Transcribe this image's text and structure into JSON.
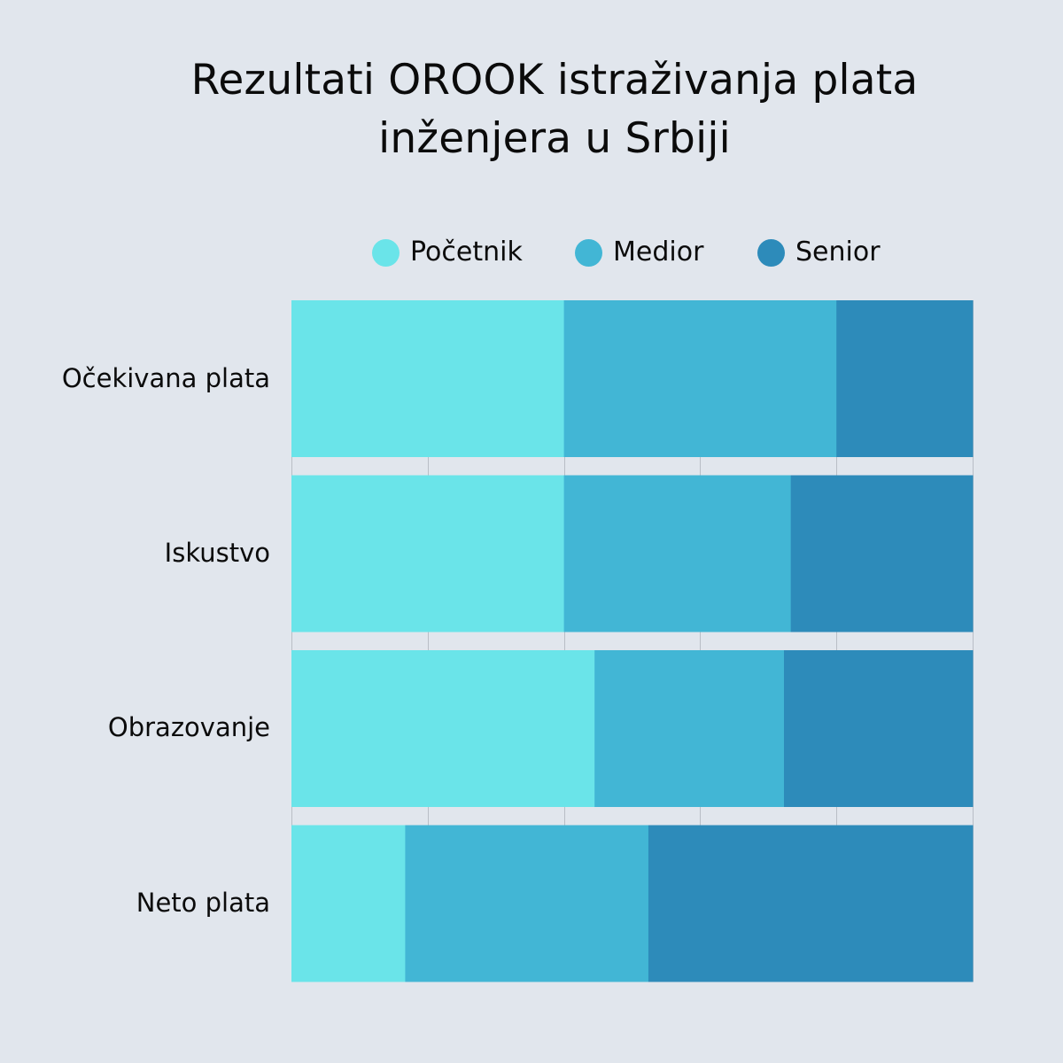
{
  "chart_data": {
    "type": "bar",
    "orientation": "horizontal",
    "stacked": true,
    "normalized": true,
    "title_lines": [
      "Rezultati OROOK istraživanja plata",
      "inženjera u Srbiji"
    ],
    "categories": [
      "Očekivana plata",
      "Iskustvo",
      "Obrazovanje",
      "Neto plata"
    ],
    "series": [
      {
        "name": "Početnik",
        "color": "#6ae4e9",
        "values": [
          40,
          40,
          44.5,
          16.7
        ]
      },
      {
        "name": "Medior",
        "color": "#42b6d5",
        "values": [
          40,
          33.3,
          27.8,
          35.7
        ]
      },
      {
        "name": "Senior",
        "color": "#2d8bba",
        "values": [
          20,
          26.7,
          27.7,
          47.6
        ]
      }
    ],
    "xlim": [
      0,
      100
    ],
    "grid": true,
    "legend_position": "top"
  }
}
